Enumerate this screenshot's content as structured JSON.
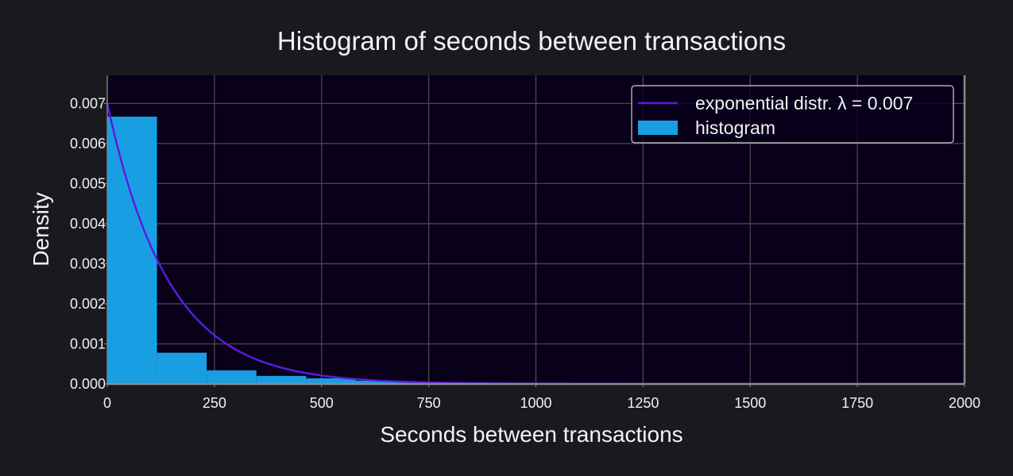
{
  "chart_data": {
    "type": "bar",
    "title": "Histogram of seconds between transactions",
    "xlabel": "Seconds between transactions",
    "ylabel": "Density",
    "xlim": [
      0,
      2000
    ],
    "ylim": [
      0,
      0.0077
    ],
    "grid": true,
    "legend_position": "top-right",
    "x_ticks": [
      "0",
      "250",
      "500",
      "750",
      "1000",
      "1250",
      "1500",
      "1750",
      "2000"
    ],
    "y_ticks": [
      "0.000",
      "0.001",
      "0.002",
      "0.003",
      "0.004",
      "0.005",
      "0.006",
      "0.007"
    ],
    "histogram": {
      "name": "histogram",
      "color": "#189fe3",
      "bin_edges": [
        0,
        116,
        232,
        348,
        464,
        580,
        696,
        812,
        928,
        1044,
        1160,
        1276,
        1392,
        1508,
        1624,
        1740,
        1856
      ],
      "densities": [
        0.00667,
        0.00078,
        0.00034,
        0.0002,
        0.00014,
        8e-05,
        4e-05,
        3e-05,
        1.5e-05,
        5e-06,
        4e-06,
        3e-06,
        2e-06,
        2e-06,
        1e-06,
        1e-06
      ]
    },
    "curve": {
      "name": "exponential distr. λ = 0.007",
      "color": "#5b1be0",
      "lambda": 0.007,
      "x_range": [
        0,
        2000
      ]
    }
  },
  "colors": {
    "background": "#1a191e",
    "plot_background": "#09001a",
    "grid": "#4a4a4a",
    "spine": "#8a8a8a"
  }
}
